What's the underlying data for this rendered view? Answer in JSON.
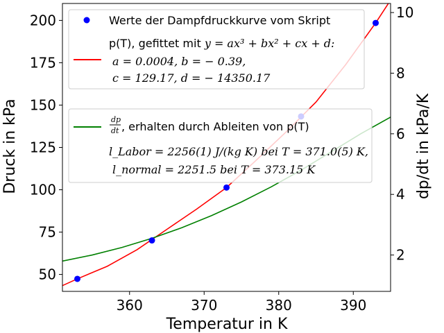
{
  "chart_data": {
    "type": "line",
    "xlabel": "Temperatur in K",
    "ylabel_left": "Druck in kPa",
    "ylabel_right": "dp/dt in kPa/K",
    "xlim": [
      351,
      395
    ],
    "ylim_left": [
      40,
      210
    ],
    "ylim_right": [
      0.8,
      10.3
    ],
    "x_ticks": [
      360,
      370,
      380,
      390
    ],
    "y_left_ticks": [
      50,
      75,
      100,
      125,
      150,
      175,
      200
    ],
    "y_right_ticks": [
      2,
      4,
      6,
      8,
      10
    ],
    "grid": false,
    "series": [
      {
        "name": "Werte der Dampfdruckkurve vom Skript",
        "kind": "scatter",
        "axis": "left",
        "color": "#0000ff",
        "x": [
          353,
          363,
          373,
          383,
          393
        ],
        "y": [
          47.4,
          70.1,
          101.3,
          143.3,
          198.5
        ]
      },
      {
        "name": "p(T), gefittet mit y = ax³ + bx² + cx + d",
        "kind": "line",
        "axis": "left",
        "color": "#ff0000",
        "x": [
          351,
          353,
          357,
          361,
          365,
          369,
          373,
          377,
          381,
          385,
          389,
          393,
          395
        ],
        "y": [
          43.4,
          47.4,
          54.8,
          64.6,
          76.6,
          88.6,
          101.3,
          117.5,
          134.2,
          151.8,
          174.0,
          198.5,
          212.0
        ]
      },
      {
        "name": "dp/dt, erhalten durch Ableiten von p(T)",
        "kind": "line",
        "axis": "right",
        "color": "#008000",
        "x": [
          351,
          355,
          359,
          363,
          367,
          371,
          375,
          379,
          383,
          387,
          391,
          395
        ],
        "y": [
          1.8,
          2.0,
          2.25,
          2.55,
          2.9,
          3.3,
          3.75,
          4.25,
          4.8,
          5.4,
          6.0,
          6.55
        ]
      }
    ],
    "legend1": {
      "scatter_label": "Werte der Dampfdruckkurve vom Skript",
      "fit_line1_prefix": "p(T), gefittet mit ",
      "fit_line1_math": "y = ax³ + bx² + cx + d:",
      "fit_line2": "a = 0.0004,  b = − 0.39,",
      "fit_line3": "c = 129.17,  d = − 14350.17"
    },
    "legend2": {
      "deriv_label": ", erhalten durch Ableiten von p(T)",
      "deriv_frac_num": "dp",
      "deriv_frac_den": "dt",
      "line2": "l_Labor = 2256(1) J/(kg K) bei T = 371.0(5) K,",
      "line3": "l_normal = 2251.5 bei T = 373.15 K"
    }
  }
}
